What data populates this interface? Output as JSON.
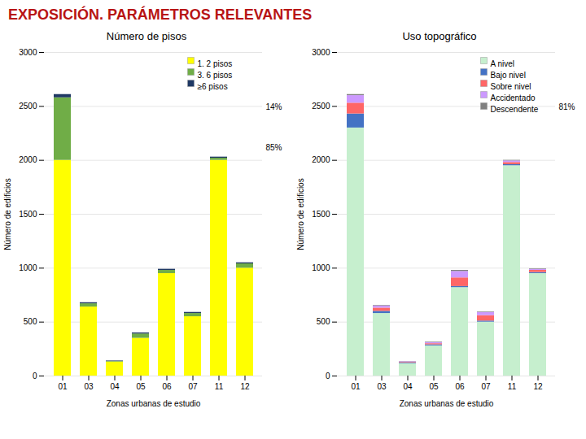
{
  "title": "EXPOSICIÓN. PARÁMETROS RELEVANTES",
  "chart_data": [
    {
      "type": "bar",
      "title": "Número de pisos",
      "xlabel": "Zonas urbanas de estudio",
      "ylabel": "Número de edificios",
      "categories": [
        "01",
        "03",
        "04",
        "05",
        "06",
        "07",
        "11",
        "12"
      ],
      "series": [
        {
          "name": "1. 2 pisos",
          "color": "#ffff00",
          "values": [
            2000,
            640,
            130,
            350,
            950,
            550,
            2000,
            1000
          ]
        },
        {
          "name": "3. 6 pisos",
          "color": "#70ad47",
          "values": [
            580,
            30,
            5,
            40,
            30,
            30,
            20,
            40
          ]
        },
        {
          "name": "≥6 pisos",
          "color": "#1f3864",
          "values": [
            30,
            10,
            5,
            10,
            10,
            10,
            10,
            10
          ]
        }
      ],
      "stacked": true,
      "ylim": [
        0,
        3000
      ],
      "yticks": [
        0,
        500,
        1000,
        1500,
        2000,
        2500,
        3000
      ],
      "grid": true,
      "legend": "upper right",
      "annotations": [
        "14%",
        "85%"
      ]
    },
    {
      "type": "bar",
      "title": "Uso topográfico",
      "xlabel": "Zonas urbanas de estudio",
      "ylabel": "Número de edificios",
      "categories": [
        "01",
        "03",
        "04",
        "05",
        "06",
        "07",
        "11",
        "12"
      ],
      "series": [
        {
          "name": "A nivel",
          "color": "#c6efce",
          "values": [
            2300,
            580,
            115,
            280,
            820,
            500,
            1950,
            950
          ]
        },
        {
          "name": "Bajo nivel",
          "color": "#4472c4",
          "values": [
            130,
            20,
            8,
            10,
            10,
            10,
            10,
            10
          ]
        },
        {
          "name": "Sobre nivel",
          "color": "#ff6666",
          "values": [
            100,
            30,
            5,
            10,
            80,
            50,
            20,
            20
          ]
        },
        {
          "name": "Accidentado",
          "color": "#cc99ff",
          "values": [
            70,
            20,
            5,
            10,
            60,
            30,
            15,
            10
          ]
        },
        {
          "name": "Descendente",
          "color": "#808080",
          "values": [
            10,
            5,
            2,
            5,
            10,
            5,
            5,
            5
          ]
        }
      ],
      "stacked": true,
      "ylim": [
        0,
        3000
      ],
      "yticks": [
        0,
        500,
        1000,
        1500,
        2000,
        2500,
        3000
      ],
      "grid": true,
      "legend": "upper right",
      "annotations": [
        "81%"
      ]
    }
  ]
}
